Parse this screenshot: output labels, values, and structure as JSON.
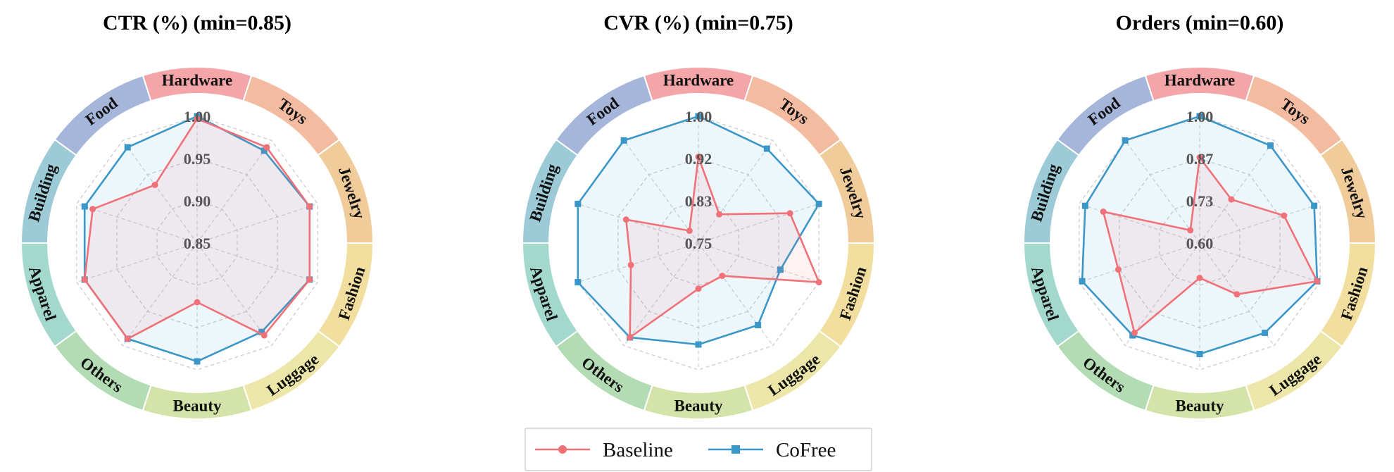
{
  "chart_data": {
    "type": "radar",
    "categories": [
      "Hardware",
      "Toys",
      "Jewelry",
      "Fashion",
      "Luggage",
      "Beauty",
      "Others",
      "Apparel",
      "Building",
      "Food"
    ],
    "category_colors": [
      "#f4a5a8",
      "#f3bca1",
      "#f0cc9a",
      "#f2dfa0",
      "#ece7a9",
      "#d4e3a8",
      "#b3dbb4",
      "#a3d8cc",
      "#9ccbd7",
      "#a6b6da"
    ],
    "legend": {
      "position": "bottom-center",
      "entries": [
        {
          "label": "Baseline",
          "color": "#f07178",
          "marker": "circle"
        },
        {
          "label": "CoFree",
          "color": "#3b97c7",
          "marker": "square"
        }
      ]
    },
    "panels": [
      {
        "title": "CTR (%)  (min=0.85)",
        "rmin": 0.85,
        "rmax": 1.0,
        "ticks": [
          "1.00",
          "0.95",
          "0.90",
          "0.85"
        ],
        "tick_values": [
          1.0,
          0.95,
          0.9,
          0.85
        ],
        "series": [
          {
            "name": "Baseline",
            "values": [
              0.997,
              0.99,
              0.99,
              0.99,
              0.985,
              0.92,
              0.99,
              0.99,
              0.98,
              0.935
            ]
          },
          {
            "name": "CoFree",
            "values": [
              1.0,
              0.985,
              0.99,
              0.99,
              0.98,
              0.99,
              0.99,
              0.99,
              0.99,
              0.99
            ]
          }
        ]
      },
      {
        "title": "CVR (%)  (min=0.75)",
        "rmin": 0.75,
        "rmax": 1.0,
        "ticks": [
          "1.00",
          "0.92",
          "0.83",
          "0.75"
        ],
        "tick_values": [
          1.0,
          0.9167,
          0.8333,
          0.75
        ],
        "series": [
          {
            "name": "Baseline",
            "values": [
              0.92,
              0.82,
              0.94,
              1.0,
              0.83,
              0.84,
              0.98,
              0.89,
              0.9,
              0.78
            ]
          },
          {
            "name": "CoFree",
            "values": [
              1.0,
              0.98,
              1.0,
              0.92,
              0.95,
              0.95,
              0.98,
              1.0,
              1.0,
              1.0
            ]
          }
        ]
      },
      {
        "title": "Orders  (min=0.60)",
        "rmin": 0.6,
        "rmax": 1.0,
        "ticks": [
          "1.00",
          "0.87",
          "0.73",
          "0.60"
        ],
        "tick_values": [
          1.0,
          0.8667,
          0.7333,
          0.6
        ],
        "series": [
          {
            "name": "Baseline",
            "values": [
              0.87,
              0.77,
              0.88,
              0.99,
              0.8,
              0.71,
              0.95,
              0.87,
              0.92,
              0.65
            ]
          },
          {
            "name": "CoFree",
            "values": [
              1.0,
              0.98,
              0.98,
              0.99,
              0.95,
              0.95,
              0.96,
              0.99,
              0.98,
              1.0
            ]
          }
        ]
      }
    ]
  }
}
